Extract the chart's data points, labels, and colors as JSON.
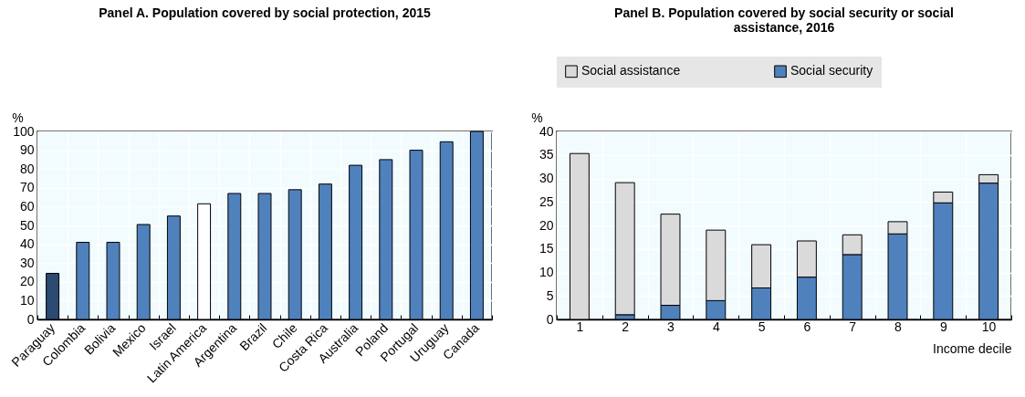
{
  "chart_data": [
    {
      "type": "bar",
      "title": "Panel A. Population covered by social protection, 2015",
      "ylabel": "%",
      "categories": [
        "Paraguay",
        "Colombia",
        "Bolivia",
        "Mexico",
        "Israel",
        "Latin America",
        "Argentina",
        "Brazil",
        "Chile",
        "Costa Rica",
        "Australia",
        "Poland",
        "Portugal",
        "Uruguay",
        "Canada"
      ],
      "values": [
        24.5,
        41,
        41,
        50.5,
        55,
        61.5,
        67,
        67,
        69,
        72,
        82,
        85,
        90,
        94.5,
        100
      ],
      "colors": [
        "#2a4a72",
        "#4f81bd",
        "#4f81bd",
        "#4f81bd",
        "#4f81bd",
        "#ffffff",
        "#4f81bd",
        "#4f81bd",
        "#4f81bd",
        "#4f81bd",
        "#4f81bd",
        "#4f81bd",
        "#4f81bd",
        "#4f81bd",
        "#4f81bd"
      ],
      "ylim": [
        0,
        100
      ],
      "yticks": [
        0,
        10,
        20,
        30,
        40,
        50,
        60,
        70,
        80,
        90,
        100
      ],
      "grid": true
    },
    {
      "type": "bar",
      "title": "Panel B. Population covered by social security or social assistance, 2016",
      "ylabel": "%",
      "xlabel": "Income decile",
      "categories": [
        "1",
        "2",
        "3",
        "4",
        "5",
        "6",
        "7",
        "8",
        "9",
        "10"
      ],
      "stacked": true,
      "legend": "top",
      "series": [
        {
          "name": "Social security",
          "color": "#4f81bd",
          "values": [
            0,
            1,
            3,
            4,
            6.7,
            9,
            13.8,
            18.2,
            24.8,
            29
          ]
        },
        {
          "name": "Social assistance",
          "color": "#dadada",
          "values": [
            35.3,
            28.1,
            19.4,
            15,
            9.2,
            7.7,
            4.2,
            2.6,
            2.3,
            1.8
          ]
        }
      ],
      "ylim": [
        0,
        40
      ],
      "yticks": [
        0,
        5,
        10,
        15,
        20,
        25,
        30,
        35,
        40
      ],
      "grid": true
    }
  ]
}
